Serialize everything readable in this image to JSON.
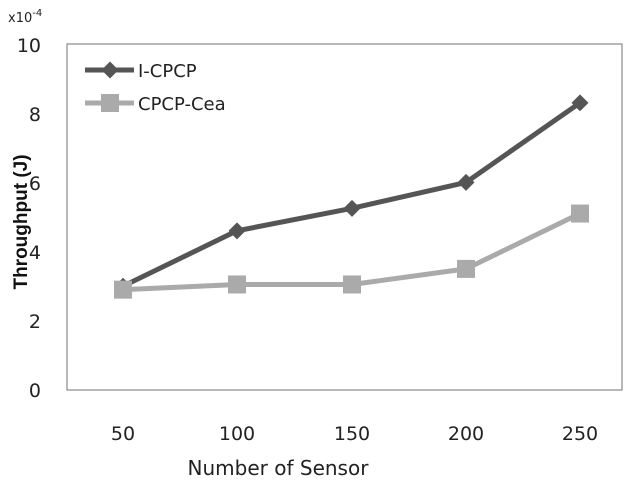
{
  "chart_data": {
    "type": "line",
    "categories": [
      "50",
      "100",
      "150",
      "200",
      "250"
    ],
    "series": [
      {
        "name": "I-CPCP",
        "values": [
          3.0,
          4.6,
          5.25,
          6.0,
          8.3
        ],
        "color": "#555555",
        "marker": "diamond"
      },
      {
        "name": "CPCP-Cea",
        "values": [
          2.9,
          3.05,
          3.05,
          3.5,
          5.1
        ],
        "color": "#aaaaaa",
        "marker": "square"
      }
    ],
    "y_ticks": [
      "0",
      "2",
      "4",
      "6",
      "8",
      "10"
    ],
    "ylim": [
      0,
      10
    ],
    "y_exponent": "x10",
    "y_exponent_power": "-4",
    "xlabel": "Number of Sensor",
    "ylabel": "Throughput (J)",
    "legend_position": "top-left",
    "grid": false
  }
}
